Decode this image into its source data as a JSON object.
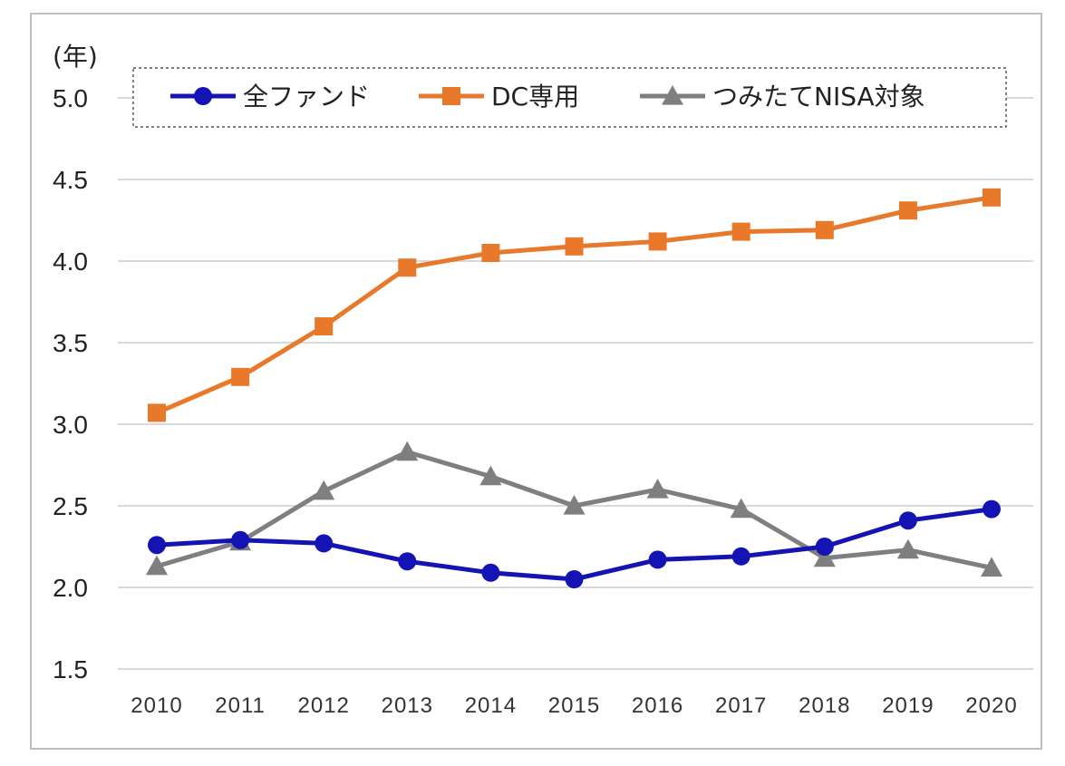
{
  "chart_data": {
    "type": "line",
    "ylabel": "(年)",
    "ylim": [
      1.5,
      5.0
    ],
    "yticks": [
      "5.0",
      "4.5",
      "4.0",
      "3.5",
      "3.0",
      "2.5",
      "2.0",
      "1.5"
    ],
    "categories": [
      "2010",
      "2011",
      "2012",
      "2013",
      "2014",
      "2015",
      "2016",
      "2017",
      "2018",
      "2019",
      "2020"
    ],
    "grid": true,
    "legend_position": "top",
    "series": [
      {
        "name": "全ファンド",
        "color": "#1414b4",
        "marker": "circle",
        "values": [
          2.26,
          2.29,
          2.27,
          2.16,
          2.09,
          2.05,
          2.17,
          2.19,
          2.25,
          2.41,
          2.48
        ]
      },
      {
        "name": "DC専用",
        "color": "#e8782a",
        "marker": "square",
        "values": [
          3.07,
          3.29,
          3.6,
          3.96,
          4.05,
          4.09,
          4.12,
          4.18,
          4.19,
          4.31,
          4.39
        ]
      },
      {
        "name": "つみたてNISA対象",
        "color": "#7f7f7f",
        "marker": "triangle",
        "values": [
          2.13,
          2.28,
          2.59,
          2.83,
          2.68,
          2.5,
          2.6,
          2.48,
          2.18,
          2.23,
          2.12
        ]
      }
    ]
  }
}
